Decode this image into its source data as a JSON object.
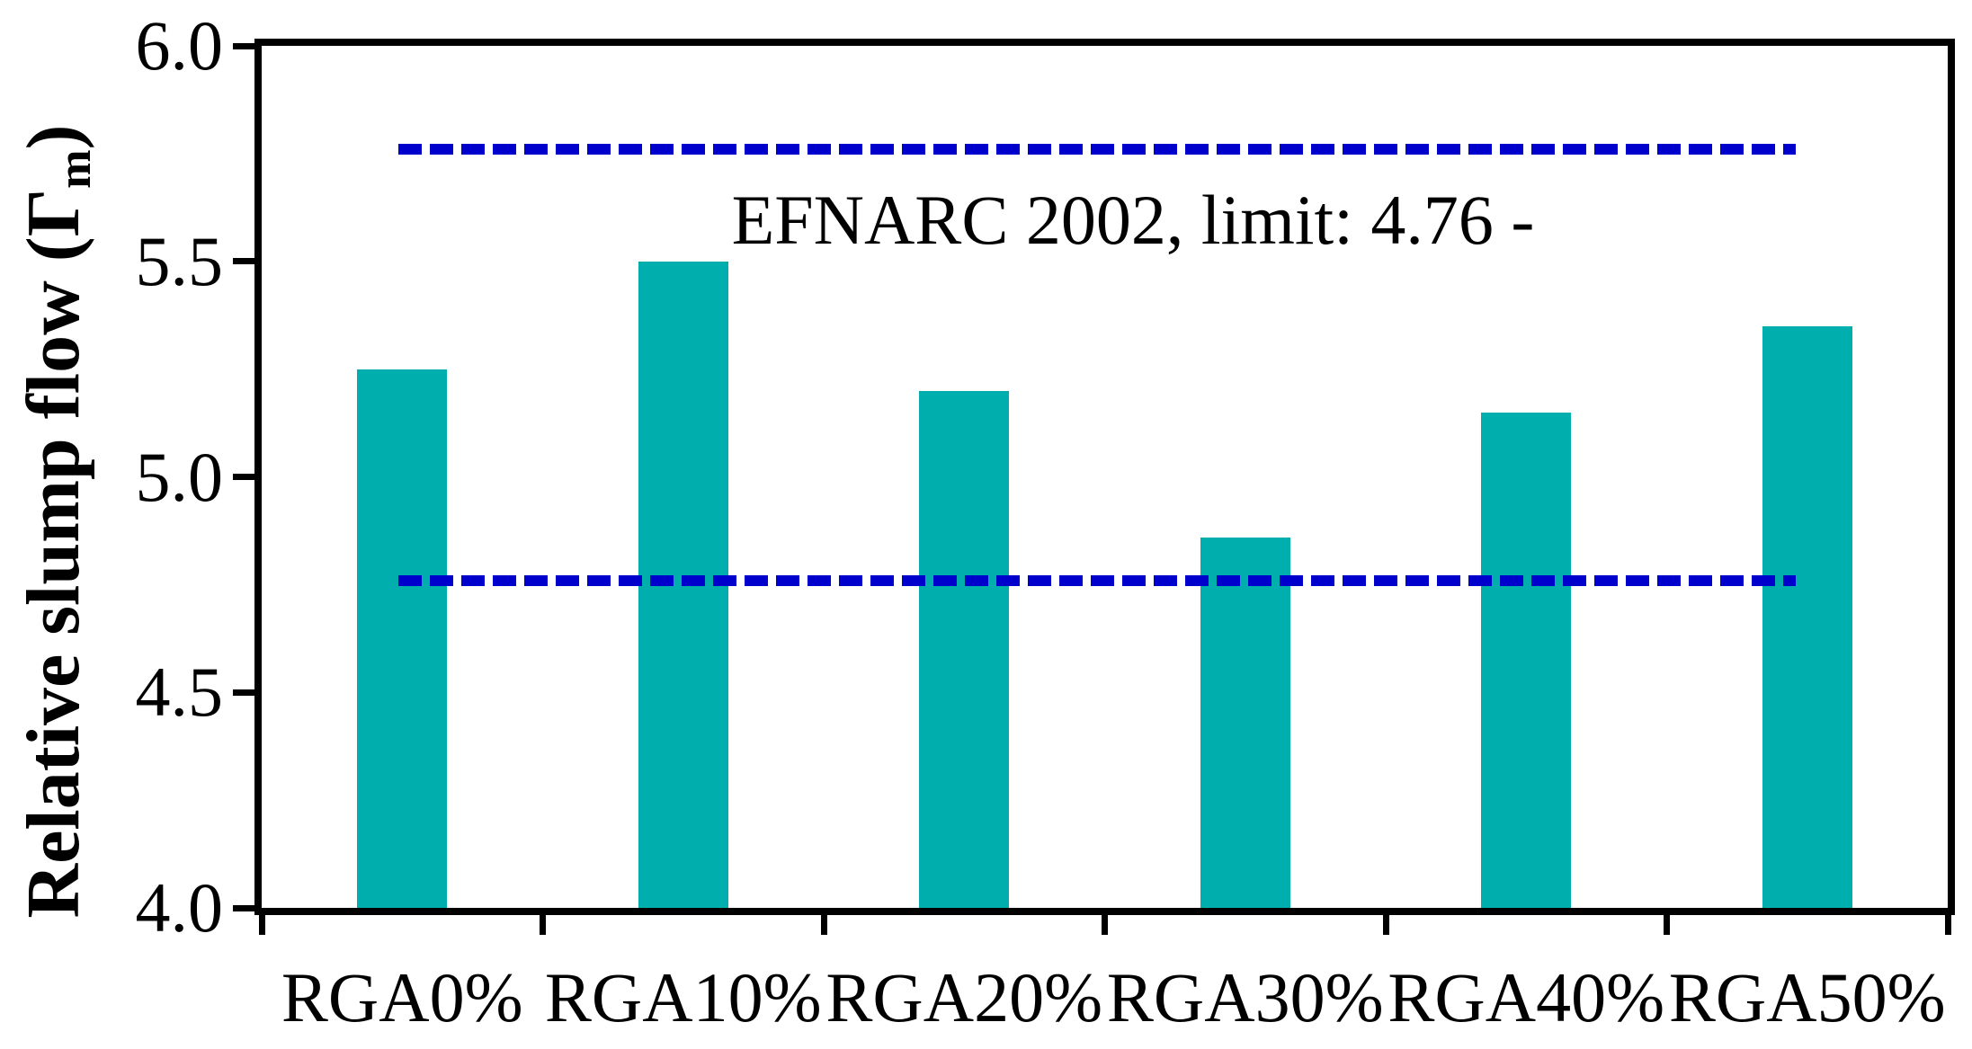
{
  "chart_data": {
    "type": "bar",
    "title": "",
    "categories": [
      "RGA0%",
      "RGA10%",
      "RGA20%",
      "RGA30%",
      "RGA40%",
      "RGA50%"
    ],
    "values": [
      5.25,
      5.5,
      5.2,
      4.86,
      5.15,
      5.35
    ],
    "ylabel_parts": {
      "prefix": "Relative slump flow (Γ",
      "subscript": "m",
      "suffix": ")"
    },
    "xlabel": "",
    "ylim": [
      4.0,
      6.0
    ],
    "yticks": [
      {
        "value": 6.0,
        "label": "6.0"
      },
      {
        "value": 5.5,
        "label": "5.5"
      },
      {
        "value": 5.0,
        "label": "5.0"
      },
      {
        "value": 4.5,
        "label": "4.5"
      },
      {
        "value": 4.0,
        "label": "4.0"
      }
    ],
    "reference_lines": [
      {
        "value": 5.76
      },
      {
        "value": 4.76
      }
    ],
    "annotation": "EFNARC 2002, limit: 4.76 -",
    "bar_color": "#00AFAD",
    "ref_line_color": "#0000CC",
    "axis_color": "#000000",
    "grid": "off",
    "legend": "none"
  }
}
